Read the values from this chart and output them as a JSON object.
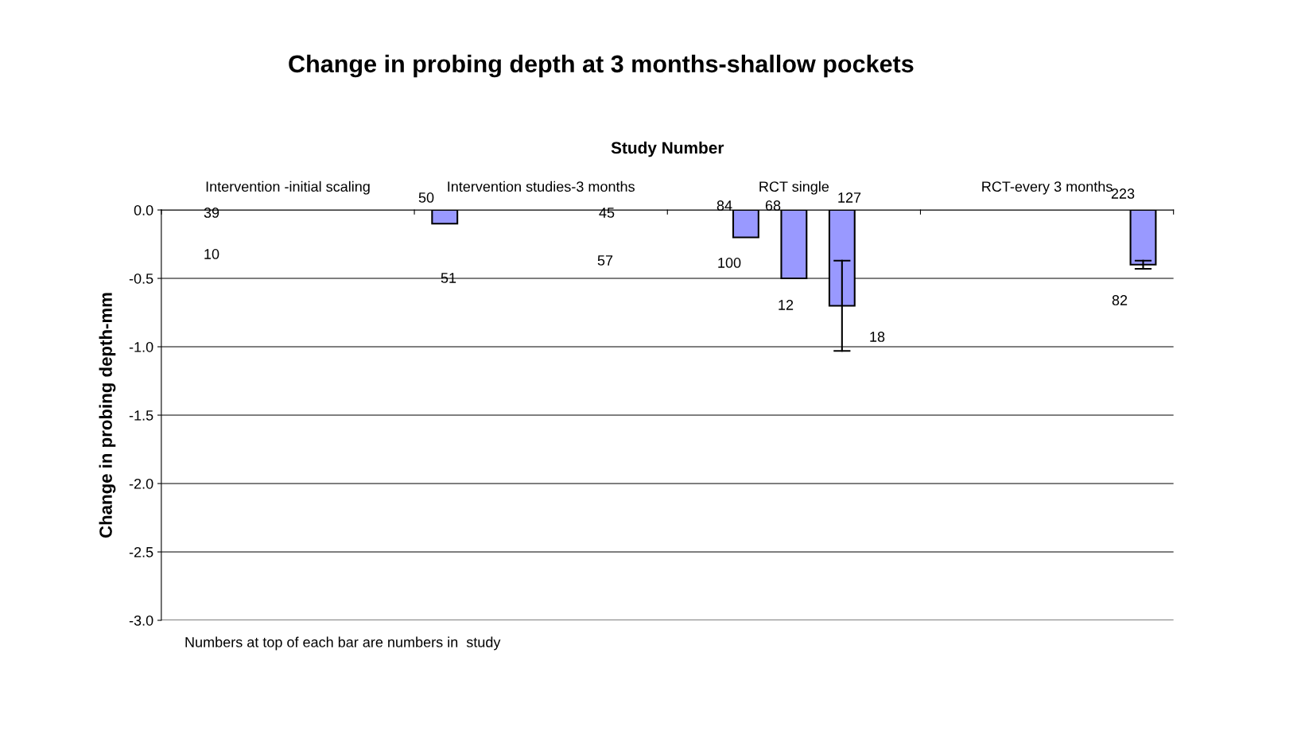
{
  "chart_data": {
    "type": "bar",
    "title": "Change in probing depth at 3 months-shallow pockets",
    "xlabel": "Study Number",
    "ylabel": "Change in probing depth-mm",
    "categories": [
      "Intervention -initial scaling",
      "Intervention studies-3 months",
      "RCT single",
      "RCT-every 3 months"
    ],
    "series": [
      {
        "color": "#9999ff",
        "values": [
          null,
          -0.1,
          null,
          null
        ]
      },
      {
        "color": "#9999ff",
        "values": [
          null,
          null,
          -0.2,
          null
        ]
      },
      {
        "color": "#9999ff",
        "values": [
          null,
          null,
          -0.5,
          null
        ]
      },
      {
        "color": "#9999ff",
        "values": [
          null,
          null,
          -0.7,
          null
        ],
        "errors": [
          null,
          null,
          [
            -1.03,
            -0.37
          ],
          null
        ]
      },
      {
        "color": "#9999ff",
        "values": [
          null,
          null,
          null,
          -0.4
        ],
        "errors": [
          null,
          null,
          null,
          [
            -0.43,
            -0.37
          ]
        ]
      }
    ],
    "ylim": [
      -3.0,
      0.0
    ],
    "yticks": [
      {
        "value": 0,
        "label": "0.0"
      },
      {
        "value": -0.5,
        "label": "-0.5"
      },
      {
        "value": -1,
        "label": "-1.0"
      },
      {
        "value": -1.5,
        "label": "-1.5"
      },
      {
        "value": -2,
        "label": "-2.0"
      },
      {
        "value": -2.5,
        "label": "-2.5"
      },
      {
        "value": -3,
        "label": "-3.0"
      }
    ],
    "grid": "y",
    "legend": false,
    "annotations": [
      "39",
      "10",
      "50",
      "51",
      "45",
      "57",
      "84",
      "100",
      "68",
      "12",
      "127",
      "18",
      "223",
      "82",
      "Numbers at top of each bar are numbers in  study"
    ]
  }
}
